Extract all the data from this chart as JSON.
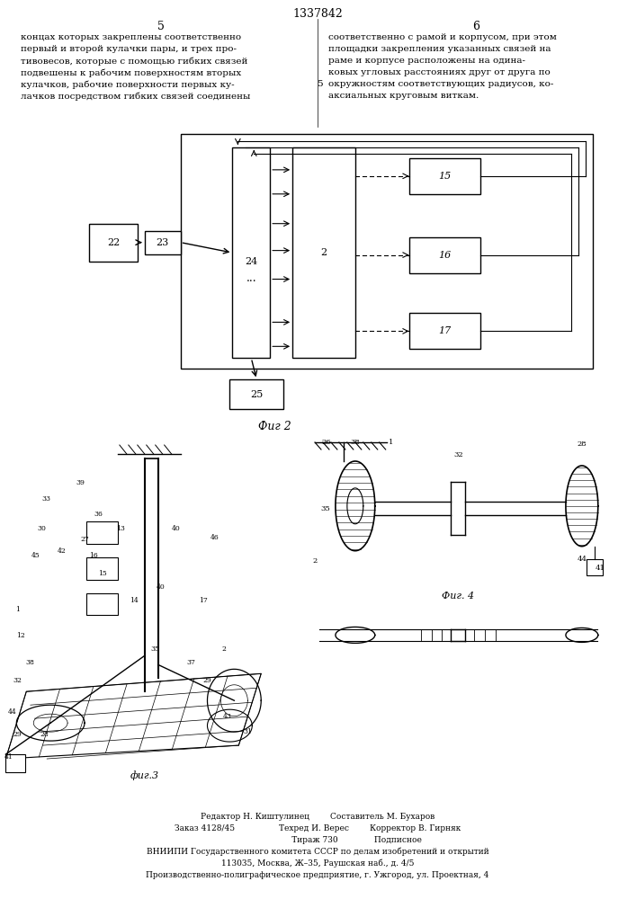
{
  "page_width": 7.07,
  "page_height": 10.0,
  "bg_color": "#ffffff",
  "patent_number": "1337842",
  "col1_text": [
    "концах которых закреплены соответственно",
    "первый и второй кулачки пары, и трех про-",
    "тивовесов, которые с помощью гибких связей",
    "подвешены к рабочим поверхностям вторых",
    "кулачков, рабочие поверхности первых ку-",
    "лачков посредством гибких связей соединены"
  ],
  "col2_text": [
    "соответственно с рамой и корпусом, при этом",
    "площадки закрепления указанных связей на",
    "раме и корпусе расположены на одина-",
    "ковых угловых расстояниях друг от друга по",
    "окружностям соответствующих радиусов, ко-",
    "аксиальных круговым виткам."
  ],
  "fig2_label": "Фиг 2",
  "fig3_label": "фиг.3",
  "fig4_label": "Фиг. 4",
  "footer_lines": [
    "Редактор Н. Киштулинец        Составитель М. Бухаров",
    "Заказ 4128/45                 Техред И. Верес        Корректор В. Гирняк",
    "                              Тираж 730              Подписное",
    "ВНИИПИ Государственного комитета СССР по делам изобретений и открытий",
    "113035, Москва, Ж–35, Раушская наб., д. 4/5",
    "Производственно-полиграфическое предприятие, г. Ужгород, ул. Проектная, 4"
  ]
}
